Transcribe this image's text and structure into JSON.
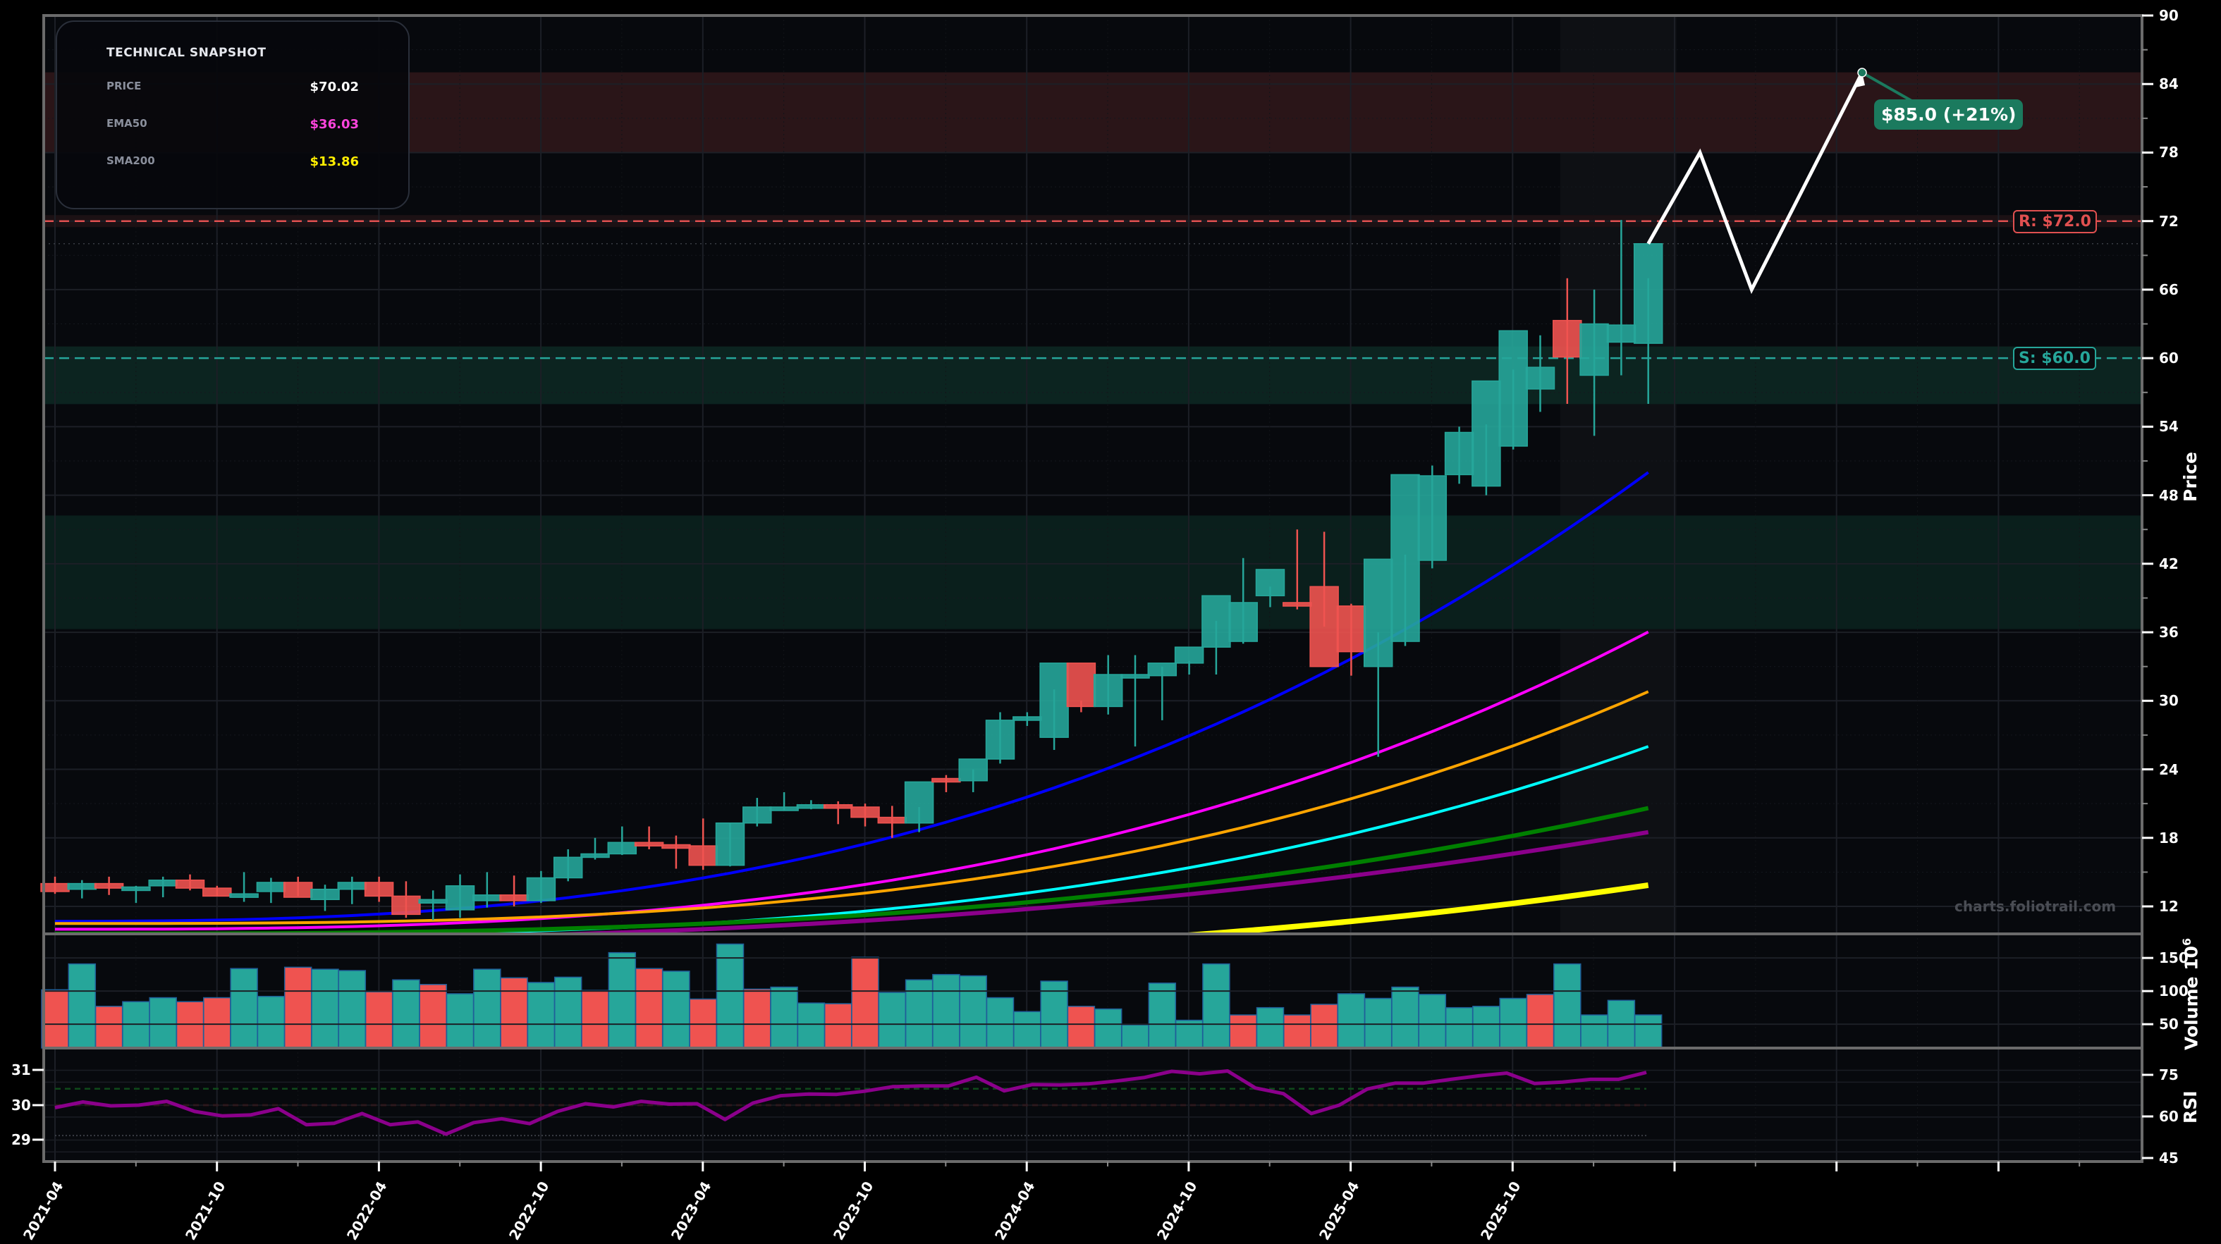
{
  "snapshot": {
    "title": "TECHNICAL SNAPSHOT",
    "rows": [
      {
        "label": "PRICE",
        "value": "$70.02",
        "color": "#ffffff"
      },
      {
        "label": "EMA50",
        "value": "$36.03",
        "color": "#ff44dd"
      },
      {
        "label": "SMA200",
        "value": "$13.86",
        "color": "#ffee00"
      }
    ]
  },
  "levels": {
    "resistance": {
      "label": "R: $72.0",
      "value": 72.0,
      "color": "#e05050"
    },
    "support": {
      "label": "S: $60.0",
      "value": 60.0,
      "color": "#26a69a"
    }
  },
  "target": {
    "label": "$85.0 (+21%)",
    "value": 85.0,
    "color": "#1b7a5e"
  },
  "watermark": "charts.foliotrail.com",
  "axes": {
    "price_title": "Price",
    "volume_title": "Volume  10",
    "volume_exp": "6",
    "rsi_title": "RSI"
  },
  "colors": {
    "up": "#26a69a",
    "down": "#ef5350",
    "background": "#07090d",
    "page": "#000000",
    "resistance_zone": "#2a1518",
    "support_zone": "#0c2420"
  },
  "chart_data": [
    {
      "type": "candlestick",
      "title": "Price",
      "ylabel": "Price",
      "ylim": [
        9.6,
        90
      ],
      "yticks": [
        12,
        18,
        24,
        30,
        36,
        42,
        48,
        54,
        60,
        66,
        72,
        78,
        84,
        90
      ],
      "xticks": [
        "2021-04",
        "2021-10",
        "2022-04",
        "2022-10",
        "2023-04",
        "2023-10",
        "2024-04",
        "2024-10",
        "2025-04",
        "2025-10"
      ],
      "x": [
        "2021-04",
        "2021-05",
        "2021-06",
        "2021-07",
        "2021-08",
        "2021-09",
        "2021-10",
        "2021-11",
        "2021-12",
        "2022-01",
        "2022-02",
        "2022-03",
        "2022-04",
        "2022-05",
        "2022-06",
        "2022-07",
        "2022-08",
        "2022-09",
        "2022-10",
        "2022-11",
        "2022-12",
        "2023-01",
        "2023-02",
        "2023-03",
        "2023-04",
        "2023-05",
        "2023-06",
        "2023-07",
        "2023-08",
        "2023-09",
        "2023-10",
        "2023-11",
        "2023-12",
        "2024-01",
        "2024-02",
        "2024-03",
        "2024-04",
        "2024-05",
        "2024-06",
        "2024-07",
        "2024-08",
        "2024-09",
        "2024-10",
        "2024-11",
        "2024-12",
        "2025-01",
        "2025-02",
        "2025-03",
        "2025-04",
        "2025-05",
        "2025-06",
        "2025-07",
        "2025-08",
        "2025-09",
        "2025-10",
        "2025-11",
        "2025-12",
        "2026-01",
        "2026-02",
        "2026-03"
      ],
      "open": [
        14.0,
        13.5,
        14.0,
        13.6,
        13.8,
        14.3,
        13.6,
        12.9,
        13.3,
        14.1,
        12.6,
        13.5,
        14.1,
        12.9,
        12.6,
        11.7,
        12.5,
        13.0,
        12.5,
        14.5,
        16.3,
        16.6,
        17.6,
        17.4,
        17.3,
        15.6,
        19.3,
        20.7,
        20.8,
        20.9,
        20.7,
        19.8,
        19.3,
        23.2,
        23.0,
        24.9,
        28.3,
        26.8,
        33.3,
        29.5,
        32.3,
        32.2,
        33.3,
        34.7,
        35.2,
        39.2,
        38.6,
        40.0,
        38.3,
        33.0,
        35.2,
        42.3,
        49.8,
        48.8,
        52.3,
        57.3,
        63.3,
        58.5,
        61.4,
        61.3
      ],
      "high": [
        14.6,
        14.3,
        14.6,
        13.8,
        14.6,
        14.8,
        13.8,
        15.0,
        14.5,
        14.6,
        13.9,
        14.6,
        14.6,
        14.2,
        13.4,
        14.8,
        15.0,
        14.7,
        15.1,
        17.0,
        18.0,
        19.0,
        19.0,
        18.2,
        19.7,
        19.3,
        21.5,
        22.0,
        21.3,
        21.2,
        21.0,
        20.8,
        20.7,
        23.5,
        24.0,
        29.0,
        29.0,
        31.0,
        30.0,
        34.0,
        34.0,
        33.0,
        33.5,
        37.0,
        42.5,
        40.0,
        45.0,
        44.8,
        38.5,
        36.0,
        42.8,
        50.6,
        54.0,
        54.2,
        59.0,
        62.0,
        67.0,
        66.0,
        72.1,
        67.0
      ],
      "low": [
        13.1,
        12.7,
        13.0,
        12.3,
        12.8,
        13.4,
        12.9,
        12.4,
        12.3,
        12.9,
        11.6,
        12.2,
        12.4,
        11.0,
        10.8,
        11.0,
        11.9,
        12.0,
        12.3,
        14.2,
        16.1,
        16.5,
        17.0,
        15.3,
        15.2,
        15.5,
        19.0,
        20.4,
        20.5,
        19.2,
        19.0,
        18.0,
        18.5,
        22.0,
        22.0,
        24.5,
        27.8,
        25.7,
        29.0,
        28.8,
        26.0,
        28.3,
        32.3,
        32.3,
        35.0,
        38.2,
        38.0,
        36.5,
        32.2,
        25.1,
        34.8,
        41.6,
        49.0,
        48.0,
        52.0,
        55.3,
        56.0,
        53.2,
        58.5,
        56.0
      ],
      "close": [
        13.3,
        14.0,
        13.6,
        13.7,
        14.3,
        13.6,
        12.9,
        13.1,
        14.1,
        12.8,
        13.5,
        14.1,
        12.9,
        11.3,
        12.6,
        13.8,
        13.0,
        12.5,
        14.5,
        16.3,
        16.6,
        17.6,
        17.4,
        17.3,
        15.6,
        19.3,
        20.7,
        20.7,
        20.9,
        20.7,
        19.8,
        19.3,
        22.9,
        23.0,
        24.9,
        28.3,
        28.6,
        33.3,
        29.5,
        32.3,
        32.3,
        33.3,
        34.7,
        39.2,
        38.6,
        41.5,
        38.3,
        33.0,
        34.3,
        42.4,
        49.8,
        49.7,
        53.5,
        58.0,
        62.4,
        59.2,
        60.1,
        63.0,
        62.9,
        70.02
      ],
      "overlays": [
        {
          "name": "EMA20",
          "color": "#0000ff",
          "values_end": 50.0
        },
        {
          "name": "EMA50",
          "color": "#ff00ff",
          "values_end": 36.03
        },
        {
          "name": "SMA50",
          "color": "#ffa500",
          "values_end": 30.8
        },
        {
          "name": "EMA100",
          "color": "#00ffff",
          "values_end": 26.0
        },
        {
          "name": "SMA100",
          "color": "#008000",
          "values_end": 20.6
        },
        {
          "name": "EMA200",
          "color": "#8b008b",
          "values_end": 18.5
        },
        {
          "name": "SMA200",
          "color": "#ffff00",
          "values_end": 13.86
        }
      ],
      "zones": [
        {
          "name": "resistance-zone-upper",
          "from": 78,
          "to": 85,
          "color": "#2a1518"
        },
        {
          "name": "resistance-band",
          "from": 71.5,
          "to": 72.5,
          "color": "#1c1114"
        },
        {
          "name": "support-band",
          "from": 56,
          "to": 61,
          "color": "#0c2420"
        },
        {
          "name": "support-zone-lower",
          "from": 36.3,
          "to": 46.2,
          "color": "#0a1f1c"
        }
      ],
      "projection": {
        "points": [
          [
            "2026-03",
            70.02
          ],
          [
            "2026-04",
            78.0
          ],
          [
            "2026-05",
            66.0
          ],
          [
            "2026-06",
            85.0
          ]
        ],
        "color": "#ffffff"
      }
    },
    {
      "type": "bar",
      "title": "Volume",
      "ylabel": "Volume 10^6",
      "ylim": [
        14,
        190
      ],
      "yticks": [
        50,
        100,
        150
      ],
      "values": [
        102,
        141,
        77,
        84,
        90,
        84,
        90,
        134,
        92,
        136,
        133,
        131,
        99,
        117,
        110,
        96,
        133,
        120,
        113,
        121,
        101,
        158,
        134,
        130,
        88,
        171,
        103,
        106,
        82,
        81,
        151,
        98,
        117,
        125,
        123,
        90,
        69,
        115,
        77,
        73,
        49,
        112,
        56,
        141,
        64,
        75,
        64,
        80,
        96,
        89,
        106,
        95,
        75,
        77,
        89,
        95,
        141,
        64,
        86,
        64
      ],
      "up_down": [
        "d",
        "u",
        "d",
        "u",
        "u",
        "d",
        "d",
        "u",
        "u",
        "d",
        "u",
        "u",
        "d",
        "u",
        "d",
        "u",
        "u",
        "d",
        "u",
        "u",
        "d",
        "u",
        "d",
        "u",
        "d",
        "u",
        "d",
        "u",
        "u",
        "d",
        "d",
        "u",
        "u",
        "u",
        "u",
        "u",
        "u",
        "u",
        "d",
        "u",
        "u",
        "u",
        "u",
        "u",
        "d",
        "u",
        "d",
        "d",
        "u",
        "u",
        "u",
        "u",
        "u",
        "u",
        "u",
        "d",
        "u",
        "u",
        "u",
        "u"
      ]
    },
    {
      "type": "line",
      "title": "RSI",
      "ylabel": "RSI",
      "ylim_left": [
        28.5,
        31.6
      ],
      "yticks_left": [
        29,
        30,
        31
      ],
      "ylim_right": [
        44,
        83
      ],
      "yticks_right": [
        45,
        60,
        75
      ],
      "values": [
        29.93,
        30.09,
        29.98,
        30.0,
        30.11,
        29.82,
        29.69,
        29.72,
        29.9,
        29.44,
        29.48,
        29.76,
        29.44,
        29.52,
        29.17,
        29.5,
        29.61,
        29.47,
        29.82,
        30.04,
        29.95,
        30.11,
        30.03,
        30.04,
        29.59,
        30.06,
        30.27,
        30.32,
        30.31,
        30.4,
        30.53,
        30.55,
        30.55,
        30.8,
        30.41,
        30.59,
        30.58,
        30.61,
        30.69,
        30.79,
        30.97,
        30.9,
        30.98,
        30.49,
        30.33,
        29.76,
        30.0,
        30.46,
        30.63,
        30.63,
        30.74,
        30.84,
        30.92,
        30.62,
        30.66,
        30.74,
        30.74,
        30.94
      ],
      "overbought_line": 30.47,
      "midline": 30.0,
      "oversold_line": 29.13
    }
  ]
}
